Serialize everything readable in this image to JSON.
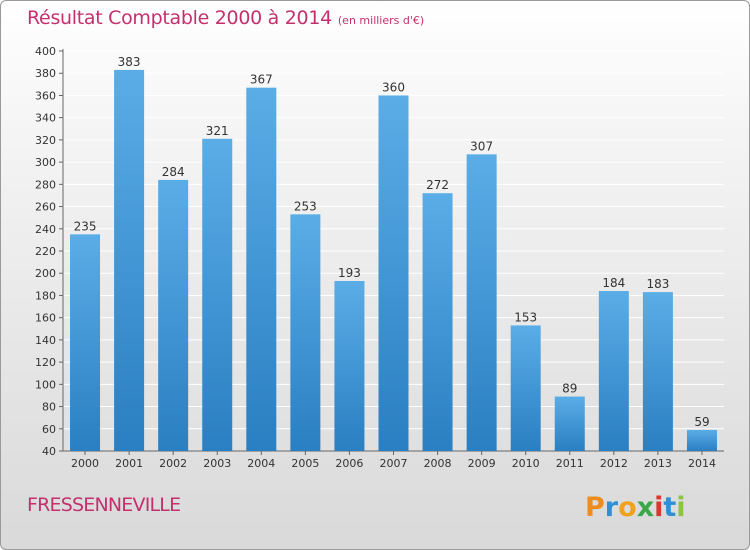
{
  "header": {
    "title": "Résultat Comptable 2000 à 2014",
    "subtitle": "(en milliers d'€)"
  },
  "footer": {
    "town": "FRESSENNEVILLE",
    "logo_text": "Proxiti"
  },
  "colors": {
    "title": "#c4306e",
    "bar_top": "#5aade6",
    "bar_bottom": "#2a7fc2",
    "grid": "#ffffff"
  },
  "chart_data": {
    "type": "bar",
    "categories": [
      "2000",
      "2001",
      "2002",
      "2003",
      "2004",
      "2005",
      "2006",
      "2007",
      "2008",
      "2009",
      "2010",
      "2011",
      "2012",
      "2013",
      "2014"
    ],
    "values": [
      235,
      383,
      284,
      321,
      367,
      253,
      193,
      360,
      272,
      307,
      153,
      89,
      184,
      183,
      59
    ],
    "ylim": [
      40,
      400
    ],
    "yticks": [
      40,
      60,
      80,
      100,
      120,
      140,
      160,
      180,
      200,
      220,
      240,
      260,
      280,
      300,
      320,
      340,
      360,
      380,
      400
    ],
    "grid": true,
    "data_labels": true
  }
}
